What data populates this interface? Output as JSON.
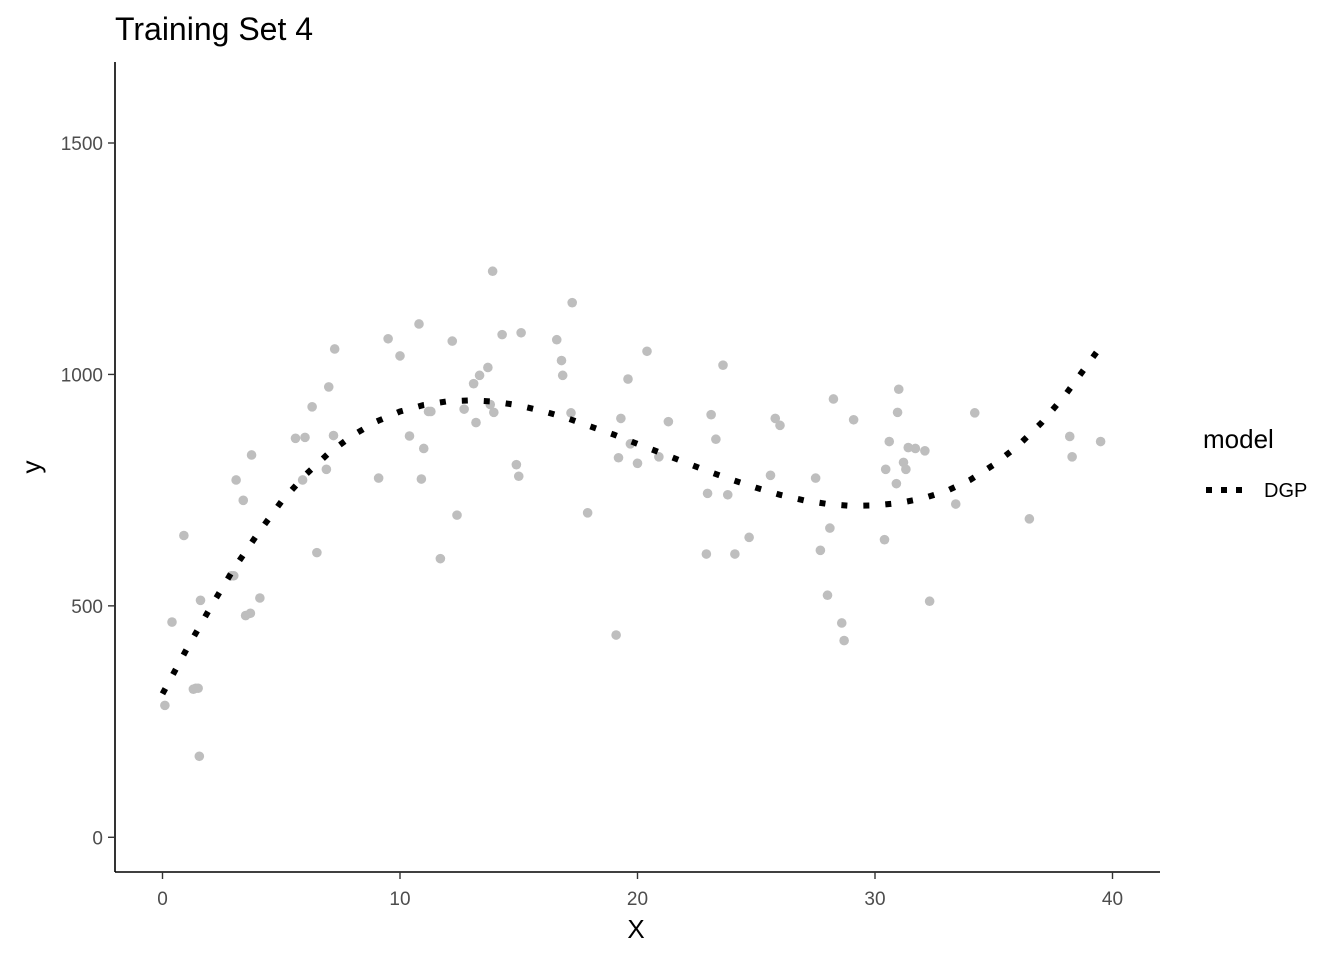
{
  "chart_data": {
    "type": "scatter",
    "title": "Training Set 4",
    "xlabel": "X",
    "ylabel": "y",
    "xlim": [
      -2,
      42
    ],
    "ylim": [
      -75,
      1675
    ],
    "x_ticks": [
      0,
      10,
      20,
      30,
      40
    ],
    "y_ticks": [
      0,
      500,
      1000,
      1500
    ],
    "x_tick_labels": [
      "0",
      "10",
      "20",
      "30",
      "40"
    ],
    "y_tick_labels": [
      "0",
      "500",
      "1000",
      "1500"
    ],
    "grid": false,
    "legend": {
      "title": "model",
      "position": "right",
      "entries": [
        {
          "label": "DGP",
          "style": "dotted",
          "color": "#000000"
        }
      ]
    },
    "point_color": "#bebebe",
    "series": [
      {
        "kind": "points",
        "points": [
          [
            0.1,
            285
          ],
          [
            0.4,
            465
          ],
          [
            0.9,
            652
          ],
          [
            1.3,
            320
          ],
          [
            1.4,
            322
          ],
          [
            1.5,
            322
          ],
          [
            1.55,
            175
          ],
          [
            1.6,
            512
          ],
          [
            2.9,
            565
          ],
          [
            3.0,
            565
          ],
          [
            3.1,
            772
          ],
          [
            3.4,
            728
          ],
          [
            3.5,
            479
          ],
          [
            3.7,
            484
          ],
          [
            3.75,
            826
          ],
          [
            4.1,
            517
          ],
          [
            5.6,
            862
          ],
          [
            5.9,
            772
          ],
          [
            6.0,
            864
          ],
          [
            6.3,
            930
          ],
          [
            6.5,
            615
          ],
          [
            6.9,
            795
          ],
          [
            7.0,
            973
          ],
          [
            7.2,
            868
          ],
          [
            7.25,
            1055
          ],
          [
            9.1,
            776
          ],
          [
            9.5,
            1077
          ],
          [
            10.0,
            1040
          ],
          [
            10.4,
            867
          ],
          [
            10.8,
            1109
          ],
          [
            10.9,
            774
          ],
          [
            11.0,
            840
          ],
          [
            11.2,
            920
          ],
          [
            11.3,
            920
          ],
          [
            11.7,
            602
          ],
          [
            12.2,
            1072
          ],
          [
            12.4,
            696
          ],
          [
            12.7,
            925
          ],
          [
            13.1,
            980
          ],
          [
            13.2,
            896
          ],
          [
            13.35,
            998
          ],
          [
            13.7,
            1015
          ],
          [
            13.8,
            935
          ],
          [
            13.9,
            1223
          ],
          [
            13.95,
            918
          ],
          [
            14.3,
            1086
          ],
          [
            14.9,
            805
          ],
          [
            15.0,
            780
          ],
          [
            15.1,
            1090
          ],
          [
            16.6,
            1075
          ],
          [
            16.8,
            1030
          ],
          [
            16.85,
            998
          ],
          [
            17.2,
            917
          ],
          [
            17.25,
            1155
          ],
          [
            17.9,
            701
          ],
          [
            19.1,
            437
          ],
          [
            19.2,
            820
          ],
          [
            19.3,
            905
          ],
          [
            19.6,
            990
          ],
          [
            19.7,
            850
          ],
          [
            20.0,
            808
          ],
          [
            20.4,
            1050
          ],
          [
            20.9,
            822
          ],
          [
            21.3,
            898
          ],
          [
            22.9,
            612
          ],
          [
            22.95,
            743
          ],
          [
            23.1,
            913
          ],
          [
            23.3,
            860
          ],
          [
            23.6,
            1020
          ],
          [
            23.8,
            740
          ],
          [
            24.1,
            612
          ],
          [
            24.7,
            648
          ],
          [
            25.6,
            782
          ],
          [
            25.8,
            905
          ],
          [
            26.0,
            890
          ],
          [
            27.5,
            776
          ],
          [
            27.7,
            620
          ],
          [
            28.0,
            523
          ],
          [
            28.1,
            668
          ],
          [
            28.25,
            947
          ],
          [
            28.6,
            463
          ],
          [
            28.7,
            425
          ],
          [
            29.1,
            902
          ],
          [
            30.4,
            643
          ],
          [
            30.45,
            795
          ],
          [
            30.6,
            855
          ],
          [
            30.9,
            764
          ],
          [
            30.95,
            918
          ],
          [
            31.0,
            968
          ],
          [
            31.2,
            810
          ],
          [
            31.3,
            795
          ],
          [
            31.4,
            842
          ],
          [
            31.7,
            840
          ],
          [
            32.1,
            835
          ],
          [
            32.3,
            510
          ],
          [
            33.4,
            720
          ],
          [
            34.2,
            917
          ],
          [
            36.5,
            688
          ],
          [
            38.2,
            866
          ],
          [
            38.3,
            822
          ],
          [
            39.5,
            855
          ]
        ]
      },
      {
        "name": "DGP",
        "kind": "line",
        "points": [
          [
            0,
            310
          ],
          [
            1,
            405
          ],
          [
            2,
            495
          ],
          [
            3,
            580
          ],
          [
            4,
            655
          ],
          [
            5,
            725
          ],
          [
            6,
            782
          ],
          [
            7,
            830
          ],
          [
            8,
            868
          ],
          [
            9,
            898
          ],
          [
            10,
            920
          ],
          [
            11,
            934
          ],
          [
            12,
            942
          ],
          [
            13,
            944
          ],
          [
            14,
            941
          ],
          [
            15,
            933
          ],
          [
            16,
            921
          ],
          [
            17,
            906
          ],
          [
            18,
            888
          ],
          [
            19,
            870
          ],
          [
            20,
            850
          ],
          [
            21,
            830
          ],
          [
            22,
            810
          ],
          [
            23,
            790
          ],
          [
            24,
            772
          ],
          [
            25,
            755
          ],
          [
            26,
            740
          ],
          [
            27,
            728
          ],
          [
            28,
            720
          ],
          [
            29,
            716
          ],
          [
            30,
            717
          ],
          [
            31,
            722
          ],
          [
            32,
            732
          ],
          [
            33,
            748
          ],
          [
            34,
            772
          ],
          [
            35,
            805
          ],
          [
            36,
            845
          ],
          [
            37,
            895
          ],
          [
            38,
            955
          ],
          [
            39,
            1025
          ],
          [
            39.5,
            1060
          ]
        ]
      }
    ]
  }
}
